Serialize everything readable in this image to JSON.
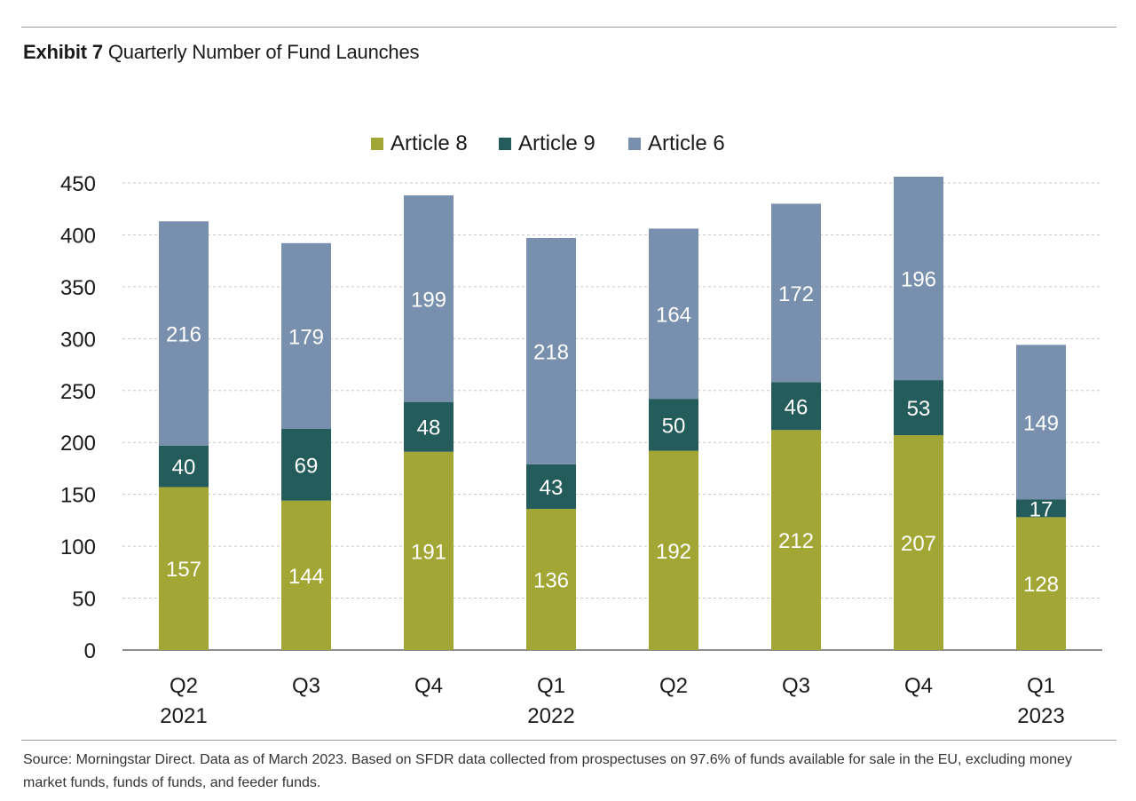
{
  "header": {
    "exhibit_label": "Exhibit 7",
    "title": "Quarterly Number of Fund Launches"
  },
  "chart_data": {
    "type": "bar",
    "stacked": true,
    "categories": [
      [
        "Q2",
        "2021"
      ],
      [
        "Q3",
        ""
      ],
      [
        "Q4",
        ""
      ],
      [
        "Q1",
        "2022"
      ],
      [
        "Q2",
        ""
      ],
      [
        "Q3",
        ""
      ],
      [
        "Q4",
        ""
      ],
      [
        "Q1",
        "2023"
      ]
    ],
    "series": [
      {
        "name": "Article 8",
        "color": "#a2a635",
        "values": [
          157,
          144,
          191,
          136,
          192,
          212,
          207,
          128
        ]
      },
      {
        "name": "Article 9",
        "color": "#245b5b",
        "values": [
          40,
          69,
          48,
          43,
          50,
          46,
          53,
          17
        ]
      },
      {
        "name": "Article 6",
        "color": "#7890ad",
        "values": [
          216,
          179,
          199,
          218,
          164,
          172,
          196,
          149
        ]
      }
    ],
    "ylim": [
      0,
      450
    ],
    "yticks": [
      0,
      50,
      100,
      150,
      200,
      250,
      300,
      350,
      400,
      450
    ],
    "grid": true,
    "legend": "top-center",
    "data_labels": true,
    "label_color": "#ffffff"
  },
  "footer": {
    "source": "Source: Morningstar Direct. Data as of March 2023. Based on SFDR data collected from prospectuses on 97.6% of funds available for sale in the EU, excluding money market funds, funds of funds, and feeder funds."
  }
}
